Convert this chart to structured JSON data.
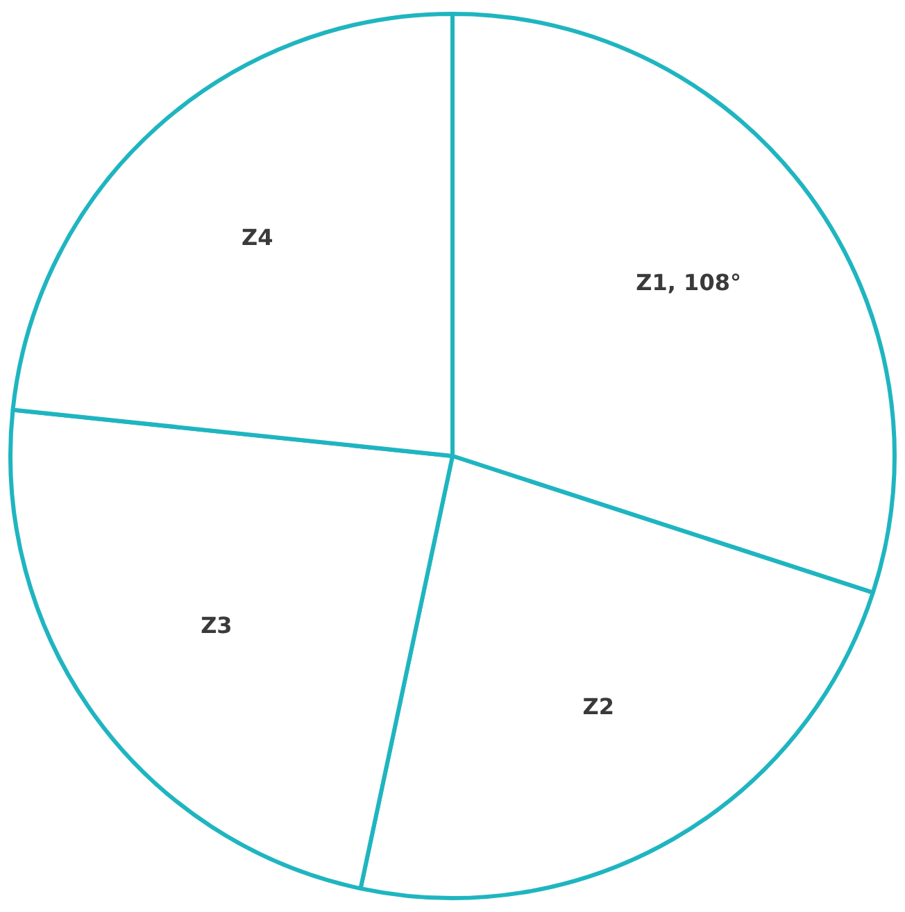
{
  "chart_data": {
    "type": "pie",
    "categories": [
      "Z1",
      "Z2",
      "Z3",
      "Z4"
    ],
    "values": [
      108,
      84,
      84,
      84
    ],
    "colors": [
      "#ffffff",
      "#ffffff",
      "#ffffff",
      "#ffffff"
    ],
    "value_labels": [
      "108°",
      null,
      null,
      null
    ],
    "legend": false
  }
}
